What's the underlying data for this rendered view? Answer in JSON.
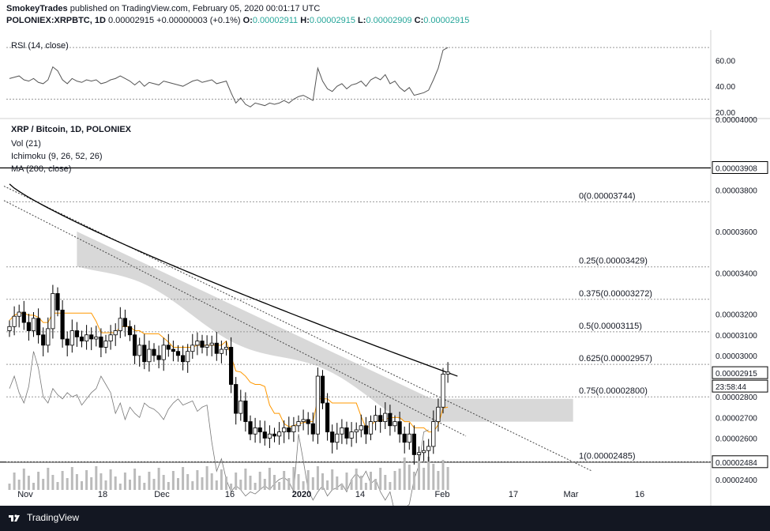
{
  "header": {
    "author": "SmokeyTrades",
    "published_text": "published on TradingView.com, February 05, 2020 00:01:17 UTC",
    "symbol": "POLONIEX:XRPBTC, 1D",
    "last": "0.00002915",
    "change": "+0.00000003 (+0.1%)",
    "o_label": "O:",
    "o": "0.00002911",
    "h_label": "H:",
    "h": "0.00002915",
    "l_label": "L:",
    "l": "0.00002909",
    "c_label": "C:",
    "c": "0.00002915"
  },
  "rsi_panel": {
    "label": "RSI (14, close)",
    "ticks": [
      "60.00",
      "40.00",
      "20.00"
    ]
  },
  "main_panel": {
    "title": "XRP / Bitcoin, 1D, POLONIEX",
    "legend": [
      "Vol (21)",
      "Ichimoku (9, 26, 52, 26)",
      "MA (200, close)"
    ],
    "price_ticks": [
      "0.00004000",
      "0.00003800",
      "0.00003600",
      "0.00003400",
      "0.00003200",
      "0.00003100",
      "0.00003000",
      "0.00002900",
      "0.00002800",
      "0.00002700",
      "0.00002600",
      "0.00002500",
      "0.00002400"
    ],
    "current_price_label": "0.00002915",
    "countdown": "23:58:44",
    "resistance_label": "0.00003908",
    "support_label": "0.00002484",
    "fib_levels": [
      {
        "label": "0(0.00003744)",
        "value": 3.744e-05
      },
      {
        "label": "0.25(0.00003429)",
        "value": 3.429e-05
      },
      {
        "label": "0.375(0.00003272)",
        "value": 3.272e-05
      },
      {
        "label": "0.5(0.00003115)",
        "value": 3.115e-05
      },
      {
        "label": "0.625(0.00002957)",
        "value": 2.957e-05
      },
      {
        "label": "0.75(0.00002800)",
        "value": 2.8e-05
      },
      {
        "label": "1(0.00002485)",
        "value": 2.485e-05
      }
    ]
  },
  "time_axis": [
    "Nov",
    "18",
    "Dec",
    "16",
    "2020",
    "14",
    "Feb",
    "17",
    "Mar",
    "16"
  ],
  "footer": {
    "brand": "TradingView"
  },
  "colors": {
    "up": "#ffffff",
    "down": "#000000",
    "cloud": "#c8c8c8",
    "kijun": "#ff9800",
    "ma": "#000000",
    "chikou": "#777777",
    "footer_bg": "#131722"
  },
  "chart_data": {
    "type": "line",
    "title": "XRP / Bitcoin, 1D, POLONIEX",
    "ylim": [
      2.38e-05,
      4.04e-05
    ],
    "rsi_ylim": [
      15,
      75
    ],
    "x_labels": [
      "Nov",
      "18",
      "Dec",
      "16",
      "2020",
      "14",
      "Feb",
      "17",
      "Mar",
      "16"
    ],
    "candles_close": [
      3.14e-05,
      3.19e-05,
      3.21e-05,
      3.16e-05,
      3.12e-05,
      3.18e-05,
      3.1e-05,
      3.05e-05,
      3.13e-05,
      3.3e-05,
      3.22e-05,
      3.08e-05,
      3.05e-05,
      3.12e-05,
      3.09e-05,
      3.07e-05,
      3.1e-05,
      3.08e-05,
      3.09e-05,
      3.04e-05,
      3.07e-05,
      3.1e-05,
      3.12e-05,
      3.18e-05,
      3.14e-05,
      3.1e-05,
      3e-05,
      3.05e-05,
      2.97e-05,
      3.03e-05,
      3e-05,
      2.98e-05,
      3.05e-05,
      3.03e-05,
      3.02e-05,
      3e-05,
      2.97e-05,
      3.02e-05,
      3.05e-05,
      3.07e-05,
      3.04e-05,
      3.05e-05,
      3.06e-05,
      3.01e-05,
      3.03e-05,
      3.04e-05,
      2.86e-05,
      2.72e-05,
      2.78e-05,
      2.68e-05,
      2.62e-05,
      2.65e-05,
      2.63e-05,
      2.6e-05,
      2.62e-05,
      2.61e-05,
      2.63e-05,
      2.65e-05,
      2.63e-05,
      2.66e-05,
      2.68e-05,
      2.69e-05,
      2.67e-05,
      2.62e-05,
      2.9e-05,
      2.77e-05,
      2.63e-05,
      2.58e-05,
      2.62e-05,
      2.65e-05,
      2.6e-05,
      2.63e-05,
      2.64e-05,
      2.66e-05,
      2.62e-05,
      2.68e-05,
      2.71e-05,
      2.68e-05,
      2.72e-05,
      2.66e-05,
      2.68e-05,
      2.62e-05,
      2.58e-05,
      2.62e-05,
      2.52e-05,
      2.53e-05,
      2.54e-05,
      2.56e-05,
      2.68e-05,
      2.75e-05,
      2.91e-05,
      2.92e-05
    ],
    "rsi": [
      46,
      47,
      48,
      45,
      44,
      46,
      43,
      42,
      45,
      55,
      52,
      45,
      42,
      46,
      44,
      43,
      45,
      44,
      45,
      42,
      43,
      45,
      46,
      48,
      46,
      44,
      41,
      44,
      40,
      43,
      42,
      41,
      44,
      43,
      42,
      41,
      40,
      42,
      44,
      45,
      43,
      44,
      45,
      42,
      43,
      44,
      35,
      27,
      31,
      26,
      24,
      27,
      26,
      25,
      27,
      26,
      27,
      29,
      27,
      30,
      32,
      33,
      31,
      29,
      54,
      44,
      38,
      36,
      40,
      42,
      38,
      41,
      42,
      44,
      40,
      45,
      47,
      45,
      49,
      42,
      44,
      39,
      36,
      39,
      33,
      34,
      35,
      37,
      45,
      54,
      68,
      70
    ]
  }
}
